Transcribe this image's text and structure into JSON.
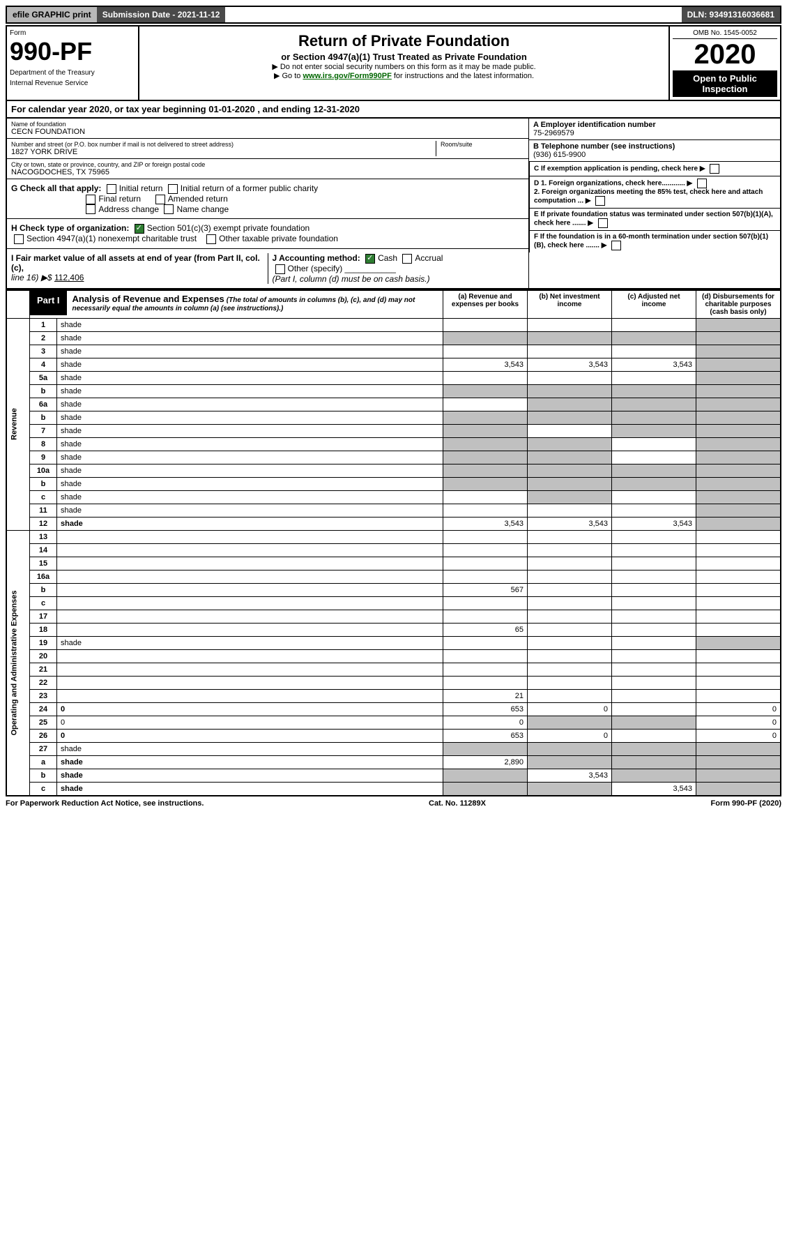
{
  "top": {
    "efile": "efile GRAPHIC print",
    "subdate_label": "Submission Date - 2021-11-12",
    "dln": "DLN: 93491316036681"
  },
  "header": {
    "form_label": "Form",
    "form_number": "990-PF",
    "dept1": "Department of the Treasury",
    "dept2": "Internal Revenue Service",
    "title": "Return of Private Foundation",
    "subtitle": "or Section 4947(a)(1) Trust Treated as Private Foundation",
    "note1": "▶ Do not enter social security numbers on this form as it may be made public.",
    "note2_pre": "▶ Go to ",
    "note2_link": "www.irs.gov/Form990PF",
    "note2_post": " for instructions and the latest information.",
    "omb": "OMB No. 1545-0052",
    "year": "2020",
    "open": "Open to Public Inspection"
  },
  "cal_year": "For calendar year 2020, or tax year beginning 01-01-2020                          , and ending 12-31-2020",
  "info": {
    "name_lbl": "Name of foundation",
    "name": "CECN FOUNDATION",
    "addr_lbl": "Number and street (or P.O. box number if mail is not delivered to street address)",
    "addr": "1827 YORK DRIVE",
    "room_lbl": "Room/suite",
    "city_lbl": "City or town, state or province, country, and ZIP or foreign postal code",
    "city": "NACOGDOCHES, TX  75965",
    "a_lbl": "A Employer identification number",
    "a_val": "75-2969579",
    "b_lbl": "B Telephone number (see instructions)",
    "b_val": "(936) 615-9900",
    "c_lbl": "C If exemption application is pending, check here",
    "d1_lbl": "D 1. Foreign organizations, check here............",
    "d2_lbl": "2. Foreign organizations meeting the 85% test, check here and attach computation ...",
    "e_lbl": "E  If private foundation status was terminated under section 507(b)(1)(A), check here .......",
    "f_lbl": "F  If the foundation is in a 60-month termination under section 507(b)(1)(B), check here .......",
    "g_lbl": "G Check all that apply:",
    "g_initial": "Initial return",
    "g_initial_former": "Initial return of a former public charity",
    "g_final": "Final return",
    "g_amended": "Amended return",
    "g_address": "Address change",
    "g_name": "Name change",
    "h_lbl": "H Check type of organization:",
    "h_501c3": "Section 501(c)(3) exempt private foundation",
    "h_4947": "Section 4947(a)(1) nonexempt charitable trust",
    "h_other": "Other taxable private foundation",
    "i_lbl": "I Fair market value of all assets at end of year (from Part II, col. (c),",
    "i_line": "line 16) ▶$",
    "i_val": "112,406",
    "j_lbl": "J Accounting method:",
    "j_cash": "Cash",
    "j_accrual": "Accrual",
    "j_other": "Other (specify)",
    "j_note": "(Part I, column (d) must be on cash basis.)"
  },
  "part1": {
    "tag": "Part I",
    "title": "Analysis of Revenue and Expenses",
    "note": "(The total of amounts in columns (b), (c), and (d) may not necessarily equal the amounts in column (a) (see instructions).)",
    "col_a": "(a) Revenue and expenses per books",
    "col_b": "(b) Net investment income",
    "col_c": "(c) Adjusted net income",
    "col_d": "(d) Disbursements for charitable purposes (cash basis only)"
  },
  "side": {
    "revenue": "Revenue",
    "opex": "Operating and Administrative Expenses"
  },
  "rows": [
    {
      "n": "1",
      "d": "shade",
      "a": "",
      "b": "",
      "c": ""
    },
    {
      "n": "2",
      "d": "shade",
      "a": "shade",
      "b": "shade",
      "c": "shade"
    },
    {
      "n": "3",
      "d": "shade",
      "a": "",
      "b": "",
      "c": ""
    },
    {
      "n": "4",
      "d": "shade",
      "a": "3,543",
      "b": "3,543",
      "c": "3,543"
    },
    {
      "n": "5a",
      "d": "shade",
      "a": "",
      "b": "",
      "c": ""
    },
    {
      "n": "b",
      "d": "shade",
      "a": "shade",
      "b": "shade",
      "c": "shade"
    },
    {
      "n": "6a",
      "d": "shade",
      "a": "",
      "b": "shade",
      "c": "shade"
    },
    {
      "n": "b",
      "d": "shade",
      "a": "shade",
      "b": "shade",
      "c": "shade"
    },
    {
      "n": "7",
      "d": "shade",
      "a": "shade",
      "b": "",
      "c": "shade"
    },
    {
      "n": "8",
      "d": "shade",
      "a": "shade",
      "b": "shade",
      "c": ""
    },
    {
      "n": "9",
      "d": "shade",
      "a": "shade",
      "b": "shade",
      "c": ""
    },
    {
      "n": "10a",
      "d": "shade",
      "a": "shade",
      "b": "shade",
      "c": "shade"
    },
    {
      "n": "b",
      "d": "shade",
      "a": "shade",
      "b": "shade",
      "c": "shade"
    },
    {
      "n": "c",
      "d": "shade",
      "a": "",
      "b": "shade",
      "c": ""
    },
    {
      "n": "11",
      "d": "shade",
      "a": "",
      "b": "",
      "c": ""
    },
    {
      "n": "12",
      "d": "shade",
      "a": "3,543",
      "b": "3,543",
      "c": "3,543",
      "bold": true
    },
    {
      "n": "13",
      "d": "",
      "a": "",
      "b": "",
      "c": ""
    },
    {
      "n": "14",
      "d": "",
      "a": "",
      "b": "",
      "c": ""
    },
    {
      "n": "15",
      "d": "",
      "a": "",
      "b": "",
      "c": ""
    },
    {
      "n": "16a",
      "d": "",
      "a": "",
      "b": "",
      "c": ""
    },
    {
      "n": "b",
      "d": "",
      "a": "567",
      "b": "",
      "c": ""
    },
    {
      "n": "c",
      "d": "",
      "a": "",
      "b": "",
      "c": ""
    },
    {
      "n": "17",
      "d": "",
      "a": "",
      "b": "",
      "c": ""
    },
    {
      "n": "18",
      "d": "",
      "a": "65",
      "b": "",
      "c": ""
    },
    {
      "n": "19",
      "d": "shade",
      "a": "",
      "b": "",
      "c": ""
    },
    {
      "n": "20",
      "d": "",
      "a": "",
      "b": "",
      "c": ""
    },
    {
      "n": "21",
      "d": "",
      "a": "",
      "b": "",
      "c": ""
    },
    {
      "n": "22",
      "d": "",
      "a": "",
      "b": "",
      "c": ""
    },
    {
      "n": "23",
      "d": "",
      "a": "21",
      "b": "",
      "c": ""
    },
    {
      "n": "24",
      "d": "0",
      "a": "653",
      "b": "0",
      "c": "",
      "bold": true
    },
    {
      "n": "25",
      "d": "0",
      "a": "0",
      "b": "shade",
      "c": "shade"
    },
    {
      "n": "26",
      "d": "0",
      "a": "653",
      "b": "0",
      "c": "",
      "bold": true
    },
    {
      "n": "27",
      "d": "shade",
      "a": "shade",
      "b": "shade",
      "c": "shade"
    },
    {
      "n": "a",
      "d": "shade",
      "a": "2,890",
      "b": "shade",
      "c": "shade",
      "bold": true
    },
    {
      "n": "b",
      "d": "shade",
      "a": "shade",
      "b": "3,543",
      "c": "shade",
      "bold": true
    },
    {
      "n": "c",
      "d": "shade",
      "a": "shade",
      "b": "shade",
      "c": "3,543",
      "bold": true
    }
  ],
  "footer": {
    "left": "For Paperwork Reduction Act Notice, see instructions.",
    "center": "Cat. No. 11289X",
    "right": "Form 990-PF (2020)"
  }
}
